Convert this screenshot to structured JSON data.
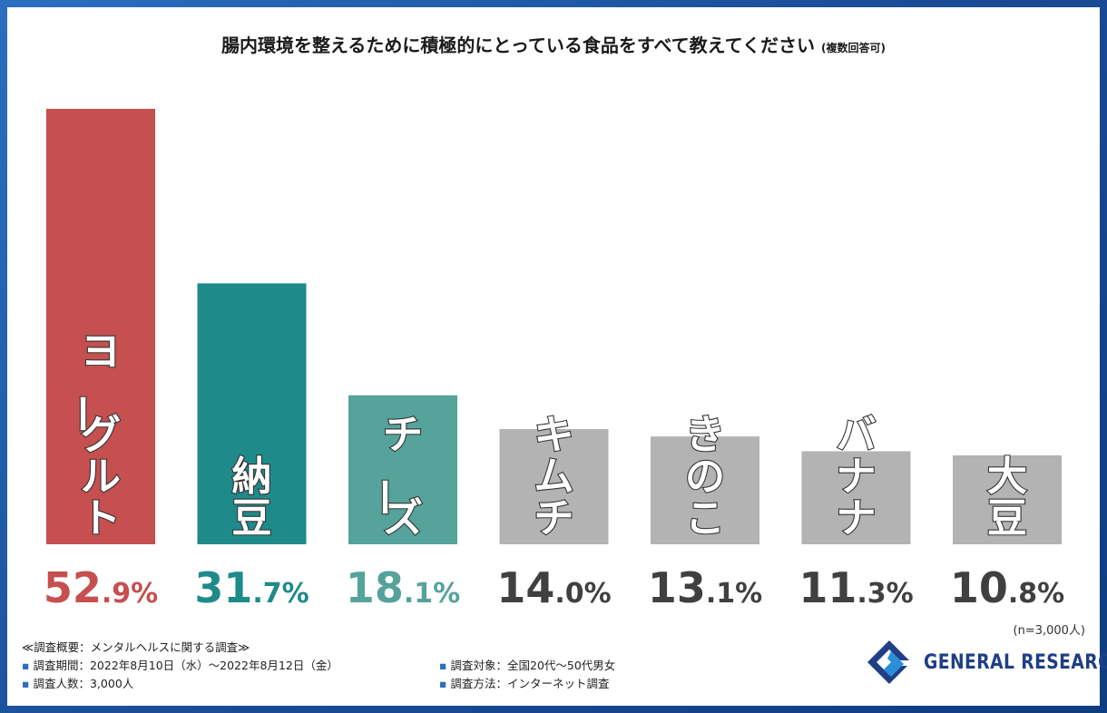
{
  "title": {
    "main": "腸内環境を整えるために積極的にとっている食品をすべて教えてください",
    "sub": "(複数回答可)"
  },
  "chart_data": {
    "type": "bar",
    "title": "腸内環境を整えるために積極的にとっている食品をすべて教えてください (複数回答可)",
    "categories": [
      "ヨーグルト",
      "納豆",
      "チーズ",
      "キムチ",
      "きのこ",
      "バナナ",
      "大豆"
    ],
    "values": [
      52.9,
      31.7,
      18.1,
      14.0,
      13.1,
      11.3,
      10.8
    ],
    "value_labels": [
      {
        "int": "52",
        "dec": ".9%"
      },
      {
        "int": "31",
        "dec": ".7%"
      },
      {
        "int": "18",
        "dec": ".1%"
      },
      {
        "int": "14",
        "dec": ".0%"
      },
      {
        "int": "13",
        "dec": ".1%"
      },
      {
        "int": "11",
        "dec": ".3%"
      },
      {
        "int": "10",
        "dec": ".8%"
      }
    ],
    "bar_colors": [
      "#c64f4f",
      "#1f8a8a",
      "#55a39a",
      "#b3b3b3",
      "#b3b3b3",
      "#b3b3b3",
      "#b3b3b3"
    ],
    "label_colors": [
      "#c64f4f",
      "#1f8a8a",
      "#55a39a",
      "#404040",
      "#404040",
      "#404040",
      "#404040"
    ],
    "unit": "%",
    "ylim": [
      0,
      60
    ],
    "xlabel": "",
    "ylabel": "",
    "grid": false
  },
  "sample_size": "(n=3,000人)",
  "survey": {
    "heading": "≪調査概要：メンタルヘルスに関する調査≫",
    "period": "調査期間：2022年8月10日（水）〜2022年8月12日（金）",
    "count": "調査人数：3,000人",
    "target": "調査対象：全国20代〜50代男女",
    "method": "調査方法：インターネット調査"
  },
  "logo": {
    "text": "GENERAL RESEARCH",
    "color": "#1f3f86"
  }
}
